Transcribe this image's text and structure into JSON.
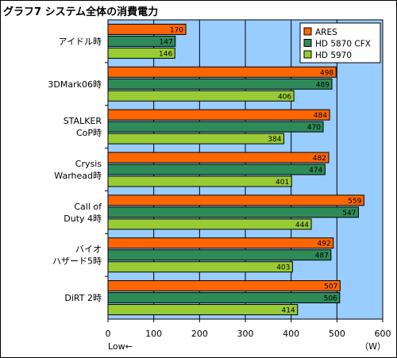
{
  "title": "グラフ7  システム全体の消費電力",
  "chart_data": {
    "type": "bar",
    "orientation": "horizontal",
    "categories": [
      "アイドル時",
      "3DMark06時",
      "STALKER\nCoP時",
      "Crysis\nWarhead時",
      "Call of\nDuty 4時",
      "バイオ\nハザード5時",
      "DiRT 2時"
    ],
    "series": [
      {
        "name": "ARES",
        "color": "#ff6600",
        "values": [
          170,
          498,
          484,
          482,
          559,
          492,
          507
        ]
      },
      {
        "name": "HD 5870 CFX",
        "color": "#2e8b57",
        "values": [
          147,
          489,
          470,
          474,
          547,
          487,
          506
        ]
      },
      {
        "name": "HD 5970",
        "color": "#99cc33",
        "values": [
          146,
          406,
          384,
          401,
          444,
          403,
          414
        ]
      }
    ],
    "xlim": [
      0,
      600
    ],
    "xticks": [
      0,
      100,
      200,
      300,
      400,
      500,
      600
    ],
    "xlabel_left": "Low←",
    "xlabel_right": "（W）",
    "legend_position": "top-right",
    "plot_background": "#99ccff",
    "grid": true
  }
}
